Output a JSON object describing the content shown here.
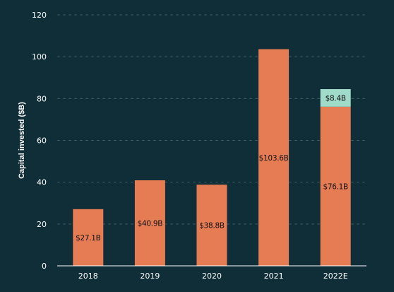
{
  "chart_data": {
    "type": "bar",
    "stacked": true,
    "categories": [
      "2018",
      "2019",
      "2020",
      "2021",
      "2022E"
    ],
    "series": [
      {
        "values": [
          27.1,
          40.9,
          38.8,
          103.6,
          76.1
        ],
        "labels": [
          "$27.1B",
          "$40.9B",
          "$38.8B",
          "$103.6B",
          "$76.1B"
        ],
        "color": "#e57c54"
      },
      {
        "values": [
          0,
          0,
          0,
          0,
          8.4
        ],
        "labels": [
          "",
          "",
          "",
          "",
          "$8.4B"
        ],
        "color": "#9fdbc8"
      }
    ],
    "title": "",
    "xlabel": "",
    "ylabel": "Capital invested ($B)",
    "ylim": [
      0,
      120
    ],
    "yticks": [
      0,
      20,
      40,
      60,
      80,
      100,
      120
    ],
    "grid": true,
    "colors": {
      "background": "#0f2e38",
      "grid": "#3d5a60",
      "axis": "#ffffff",
      "text": "#ffffff",
      "bar_label": "#111111"
    }
  }
}
